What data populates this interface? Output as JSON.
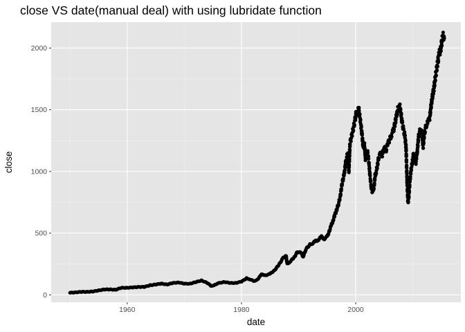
{
  "chart_data": {
    "type": "scatter",
    "title": "close VS date(manual deal) with using lubridate function",
    "xlabel": "date",
    "ylabel": "close",
    "x_ticks": [
      1960,
      1980,
      2000
    ],
    "y_ticks": [
      0,
      500,
      1000,
      1500,
      2000
    ],
    "xlim": [
      1946.7,
      2018.4
    ],
    "ylim": [
      -60,
      2210
    ],
    "grid": true,
    "point_color": "#000000",
    "panel_color": "#e5e5e5",
    "series": [
      {
        "points": [
          [
            1950.0,
            17
          ],
          [
            1951.0,
            21
          ],
          [
            1952.0,
            24
          ],
          [
            1953.0,
            25
          ],
          [
            1954.0,
            27
          ],
          [
            1955.0,
            36
          ],
          [
            1956.0,
            44
          ],
          [
            1957.0,
            44
          ],
          [
            1958.0,
            42
          ],
          [
            1959.0,
            57
          ],
          [
            1960.0,
            58
          ],
          [
            1961.0,
            60
          ],
          [
            1962.0,
            65
          ],
          [
            1963.0,
            64
          ],
          [
            1964.0,
            78
          ],
          [
            1965.0,
            84
          ],
          [
            1966.0,
            91
          ],
          [
            1967.0,
            84
          ],
          [
            1968.0,
            96
          ],
          [
            1969.0,
            101
          ],
          [
            1970.0,
            90
          ],
          [
            1971.0,
            91
          ],
          [
            1972.0,
            103
          ],
          [
            1973.0,
            117
          ],
          [
            1974.0,
            97
          ],
          [
            1974.8,
            70
          ],
          [
            1975.5,
            86
          ],
          [
            1976.0,
            95
          ],
          [
            1977.0,
            105
          ],
          [
            1978.0,
            96
          ],
          [
            1979.0,
            97
          ],
          [
            1980.0,
            107
          ],
          [
            1980.9,
            135
          ],
          [
            1981.5,
            125
          ],
          [
            1982.3,
            110
          ],
          [
            1982.9,
            130
          ],
          [
            1983.5,
            165
          ],
          [
            1984.3,
            160
          ],
          [
            1985.0,
            170
          ],
          [
            1985.8,
            200
          ],
          [
            1986.5,
            240
          ],
          [
            1987.3,
            300
          ],
          [
            1987.8,
            320
          ],
          [
            1988.0,
            250
          ],
          [
            1988.5,
            270
          ],
          [
            1989.2,
            300
          ],
          [
            1989.8,
            350
          ],
          [
            1990.4,
            340
          ],
          [
            1990.8,
            310
          ],
          [
            1991.3,
            370
          ],
          [
            1992.0,
            410
          ],
          [
            1992.5,
            420
          ],
          [
            1993.0,
            435
          ],
          [
            1993.5,
            450
          ],
          [
            1994.0,
            470
          ],
          [
            1994.5,
            455
          ],
          [
            1995.0,
            470
          ],
          [
            1995.4,
            520
          ],
          [
            1995.7,
            560
          ],
          [
            1996.0,
            600
          ],
          [
            1996.3,
            640
          ],
          [
            1996.6,
            680
          ],
          [
            1997.0,
            740
          ],
          [
            1997.3,
            800
          ],
          [
            1997.6,
            900
          ],
          [
            1998.0,
            980
          ],
          [
            1998.3,
            1100
          ],
          [
            1998.6,
            1140
          ],
          [
            1998.8,
            1000
          ],
          [
            1999.0,
            1230
          ],
          [
            1999.3,
            1290
          ],
          [
            1999.6,
            1350
          ],
          [
            1999.9,
            1420
          ],
          [
            2000.1,
            1480
          ],
          [
            2000.3,
            1450
          ],
          [
            2000.5,
            1520
          ],
          [
            2000.7,
            1450
          ],
          [
            2000.9,
            1380
          ],
          [
            2001.1,
            1300
          ],
          [
            2001.3,
            1200
          ],
          [
            2001.5,
            1230
          ],
          [
            2001.7,
            1100
          ],
          [
            2001.9,
            1140
          ],
          [
            2002.1,
            1150
          ],
          [
            2002.3,
            1080
          ],
          [
            2002.5,
            960
          ],
          [
            2002.7,
            880
          ],
          [
            2002.9,
            830
          ],
          [
            2003.0,
            850
          ],
          [
            2003.2,
            870
          ],
          [
            2003.4,
            970
          ],
          [
            2003.6,
            1000
          ],
          [
            2003.8,
            1050
          ],
          [
            2004.0,
            1110
          ],
          [
            2004.3,
            1140
          ],
          [
            2004.6,
            1130
          ],
          [
            2005.0,
            1190
          ],
          [
            2005.3,
            1170
          ],
          [
            2005.6,
            1220
          ],
          [
            2006.0,
            1270
          ],
          [
            2006.3,
            1300
          ],
          [
            2006.6,
            1330
          ],
          [
            2007.0,
            1420
          ],
          [
            2007.2,
            1460
          ],
          [
            2007.4,
            1510
          ],
          [
            2007.7,
            1530
          ],
          [
            2007.9,
            1480
          ],
          [
            2008.1,
            1400
          ],
          [
            2008.4,
            1330
          ],
          [
            2008.6,
            1290
          ],
          [
            2008.8,
            1200
          ],
          [
            2009.0,
            900
          ],
          [
            2009.15,
            740
          ],
          [
            2009.3,
            800
          ],
          [
            2009.5,
            930
          ],
          [
            2009.7,
            1020
          ],
          [
            2009.9,
            1070
          ],
          [
            2010.1,
            1140
          ],
          [
            2010.3,
            1080
          ],
          [
            2010.5,
            1060
          ],
          [
            2010.8,
            1180
          ],
          [
            2011.0,
            1280
          ],
          [
            2011.3,
            1340
          ],
          [
            2011.6,
            1300
          ],
          [
            2011.8,
            1200
          ],
          [
            2012.0,
            1300
          ],
          [
            2012.3,
            1370
          ],
          [
            2012.6,
            1400
          ],
          [
            2012.9,
            1420
          ],
          [
            2013.1,
            1500
          ],
          [
            2013.4,
            1600
          ],
          [
            2013.7,
            1680
          ],
          [
            2014.0,
            1780
          ],
          [
            2014.3,
            1870
          ],
          [
            2014.6,
            1950
          ],
          [
            2014.9,
            2000
          ],
          [
            2015.1,
            2060
          ],
          [
            2015.3,
            2110
          ],
          [
            2015.5,
            2080
          ]
        ]
      }
    ]
  }
}
